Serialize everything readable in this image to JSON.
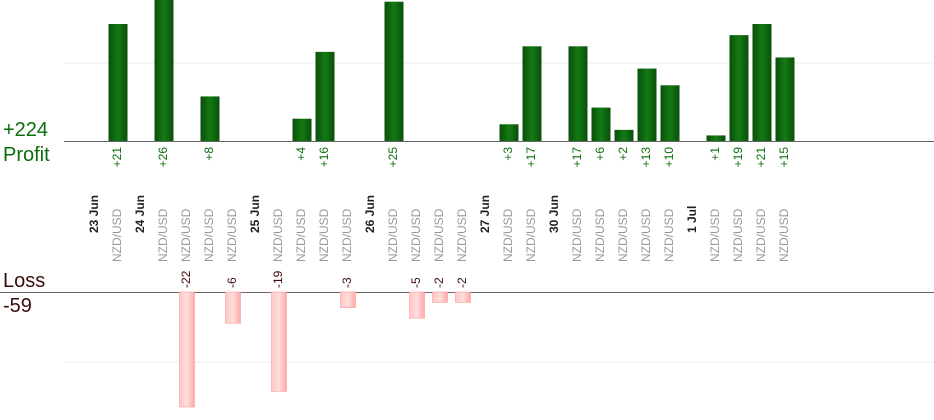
{
  "summary": {
    "profit_total": "+224",
    "profit_label": "Profit",
    "loss_label": "Loss",
    "loss_total": "-59"
  },
  "colors": {
    "profit_bar": "#0d5f0d",
    "profit_text": "#0b6d0b",
    "loss_bar": "#ffb3b3",
    "loss_text": "#3a0b0b",
    "pair_text": "#999999",
    "date_text": "#222222"
  },
  "chart_data": {
    "type": "bar",
    "profit_axis_max": 40,
    "loss_axis_max": 40,
    "dates": [
      {
        "label": "23 Jun",
        "trades": [
          {
            "pair": "NZD/USD",
            "value": 21
          }
        ]
      },
      {
        "label": "24 Jun",
        "trades": [
          {
            "pair": "NZD/USD",
            "value": 26
          },
          {
            "pair": "NZD/USD",
            "value": -22
          },
          {
            "pair": "NZD/USD",
            "value": 8
          },
          {
            "pair": "NZD/USD",
            "value": -6
          }
        ]
      },
      {
        "label": "25 Jun",
        "trades": [
          {
            "pair": "NZD/USD",
            "value": -19
          },
          {
            "pair": "NZD/USD",
            "value": 4
          },
          {
            "pair": "NZD/USD",
            "value": 16
          },
          {
            "pair": "NZD/USD",
            "value": -3
          }
        ]
      },
      {
        "label": "26 Jun",
        "trades": [
          {
            "pair": "NZD/USD",
            "value": 25
          },
          {
            "pair": "NZD/USD",
            "value": -5
          },
          {
            "pair": "NZD/USD",
            "value": -2
          },
          {
            "pair": "NZD/USD",
            "value": -2
          }
        ]
      },
      {
        "label": "27 Jun",
        "trades": [
          {
            "pair": "NZD/USD",
            "value": 3
          },
          {
            "pair": "NZD/USD",
            "value": 17
          }
        ]
      },
      {
        "label": "30 Jun",
        "trades": [
          {
            "pair": "NZD/USD",
            "value": 17
          },
          {
            "pair": "NZD/USD",
            "value": 6
          },
          {
            "pair": "NZD/USD",
            "value": 2
          },
          {
            "pair": "NZD/USD",
            "value": 13
          },
          {
            "pair": "NZD/USD",
            "value": 10
          }
        ]
      },
      {
        "label": "1 Jul",
        "trades": [
          {
            "pair": "NZD/USD",
            "value": 1
          },
          {
            "pair": "NZD/USD",
            "value": 19
          },
          {
            "pair": "NZD/USD",
            "value": 21
          },
          {
            "pair": "NZD/USD",
            "value": 15
          }
        ]
      }
    ]
  }
}
